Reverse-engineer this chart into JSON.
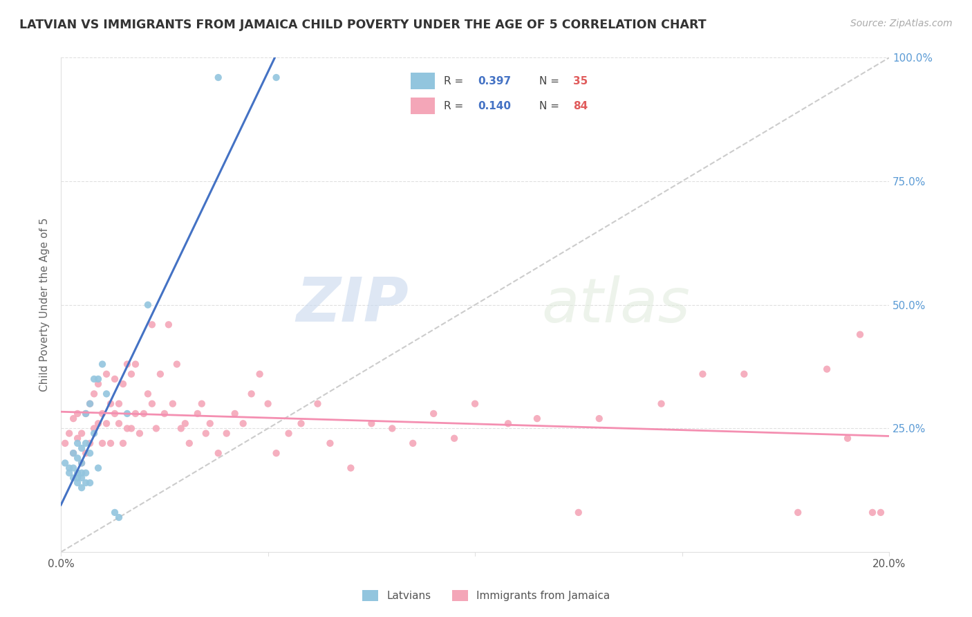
{
  "title": "LATVIAN VS IMMIGRANTS FROM JAMAICA CHILD POVERTY UNDER THE AGE OF 5 CORRELATION CHART",
  "source": "Source: ZipAtlas.com",
  "ylabel": "Child Poverty Under the Age of 5",
  "xlim": [
    0.0,
    0.2
  ],
  "ylim": [
    0.0,
    1.0
  ],
  "latvian_color": "#92c5de",
  "jamaica_color": "#f4a6b8",
  "latvian_line_color": "#4472c4",
  "jamaica_line_color": "#f48fb1",
  "diag_color": "#cccccc",
  "grid_color": "#e0e0e0",
  "right_tick_color": "#5b9bd5",
  "latvian_R": "0.397",
  "latvian_N": "35",
  "jamaica_R": "0.140",
  "jamaica_N": "84",
  "legend_label_latvian": "Latvians",
  "legend_label_jamaica": "Immigrants from Jamaica",
  "watermark_zip": "ZIP",
  "watermark_atlas": "atlas",
  "latvian_x": [
    0.001,
    0.002,
    0.002,
    0.003,
    0.003,
    0.003,
    0.004,
    0.004,
    0.004,
    0.004,
    0.004,
    0.005,
    0.005,
    0.005,
    0.005,
    0.005,
    0.006,
    0.006,
    0.006,
    0.006,
    0.007,
    0.007,
    0.007,
    0.008,
    0.008,
    0.009,
    0.009,
    0.01,
    0.011,
    0.013,
    0.014,
    0.016,
    0.021,
    0.038,
    0.052
  ],
  "latvian_y": [
    0.18,
    0.16,
    0.17,
    0.15,
    0.17,
    0.2,
    0.14,
    0.15,
    0.16,
    0.19,
    0.22,
    0.13,
    0.15,
    0.16,
    0.18,
    0.21,
    0.14,
    0.16,
    0.22,
    0.28,
    0.14,
    0.2,
    0.3,
    0.24,
    0.35,
    0.17,
    0.35,
    0.38,
    0.32,
    0.08,
    0.07,
    0.28,
    0.5,
    0.96,
    0.96
  ],
  "jamaica_x": [
    0.001,
    0.002,
    0.003,
    0.003,
    0.004,
    0.004,
    0.005,
    0.005,
    0.006,
    0.006,
    0.007,
    0.007,
    0.008,
    0.008,
    0.009,
    0.009,
    0.01,
    0.01,
    0.011,
    0.011,
    0.012,
    0.012,
    0.013,
    0.013,
    0.014,
    0.014,
    0.015,
    0.015,
    0.016,
    0.016,
    0.017,
    0.017,
    0.018,
    0.018,
    0.019,
    0.02,
    0.021,
    0.022,
    0.022,
    0.023,
    0.024,
    0.025,
    0.026,
    0.027,
    0.028,
    0.029,
    0.03,
    0.031,
    0.033,
    0.034,
    0.035,
    0.036,
    0.038,
    0.04,
    0.042,
    0.044,
    0.046,
    0.048,
    0.05,
    0.052,
    0.055,
    0.058,
    0.062,
    0.065,
    0.07,
    0.075,
    0.08,
    0.085,
    0.09,
    0.095,
    0.1,
    0.108,
    0.115,
    0.125,
    0.13,
    0.145,
    0.155,
    0.165,
    0.178,
    0.185,
    0.19,
    0.193,
    0.196,
    0.198
  ],
  "jamaica_y": [
    0.22,
    0.24,
    0.2,
    0.27,
    0.23,
    0.28,
    0.18,
    0.24,
    0.2,
    0.28,
    0.22,
    0.3,
    0.25,
    0.32,
    0.26,
    0.34,
    0.28,
    0.22,
    0.26,
    0.36,
    0.3,
    0.22,
    0.28,
    0.35,
    0.3,
    0.26,
    0.34,
    0.22,
    0.38,
    0.25,
    0.36,
    0.25,
    0.38,
    0.28,
    0.24,
    0.28,
    0.32,
    0.3,
    0.46,
    0.25,
    0.36,
    0.28,
    0.46,
    0.3,
    0.38,
    0.25,
    0.26,
    0.22,
    0.28,
    0.3,
    0.24,
    0.26,
    0.2,
    0.24,
    0.28,
    0.26,
    0.32,
    0.36,
    0.3,
    0.2,
    0.24,
    0.26,
    0.3,
    0.22,
    0.17,
    0.26,
    0.25,
    0.22,
    0.28,
    0.23,
    0.3,
    0.26,
    0.27,
    0.08,
    0.27,
    0.3,
    0.36,
    0.36,
    0.08,
    0.37,
    0.23,
    0.44,
    0.08,
    0.08
  ]
}
